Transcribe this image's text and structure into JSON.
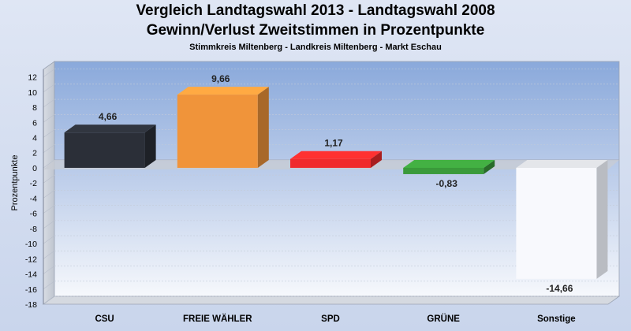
{
  "chart_data": {
    "type": "bar",
    "title": "Vergleich Landtagswahl 2013 - Landtagswahl 2008",
    "subtitle": "Gewinn/Verlust Zweitstimmen in Prozentpunkte",
    "subsubtitle": "Stimmkreis Miltenberg - Landkreis Miltenberg - Markt Eschau",
    "xlabel": "",
    "ylabel": "Prozentpunkte",
    "ylim": [
      -18,
      13
    ],
    "yticks": [
      12,
      10,
      8,
      6,
      4,
      2,
      0,
      -2,
      -4,
      -6,
      -8,
      -10,
      -12,
      -14,
      -16,
      -18
    ],
    "grid": true,
    "categories": [
      "CSU",
      "FREIE WÄHLER",
      "SPD",
      "GRÜNE",
      "Sonstige"
    ],
    "values": [
      4.66,
      9.66,
      1.17,
      -0.83,
      -14.66
    ],
    "value_labels": [
      "4,66",
      "9,66",
      "1,17",
      "-0,83",
      "-14,66"
    ],
    "colors": [
      "#2b2f38",
      "#f0943a",
      "#f02b2b",
      "#3a9a3a",
      "#f8f9fd"
    ]
  }
}
